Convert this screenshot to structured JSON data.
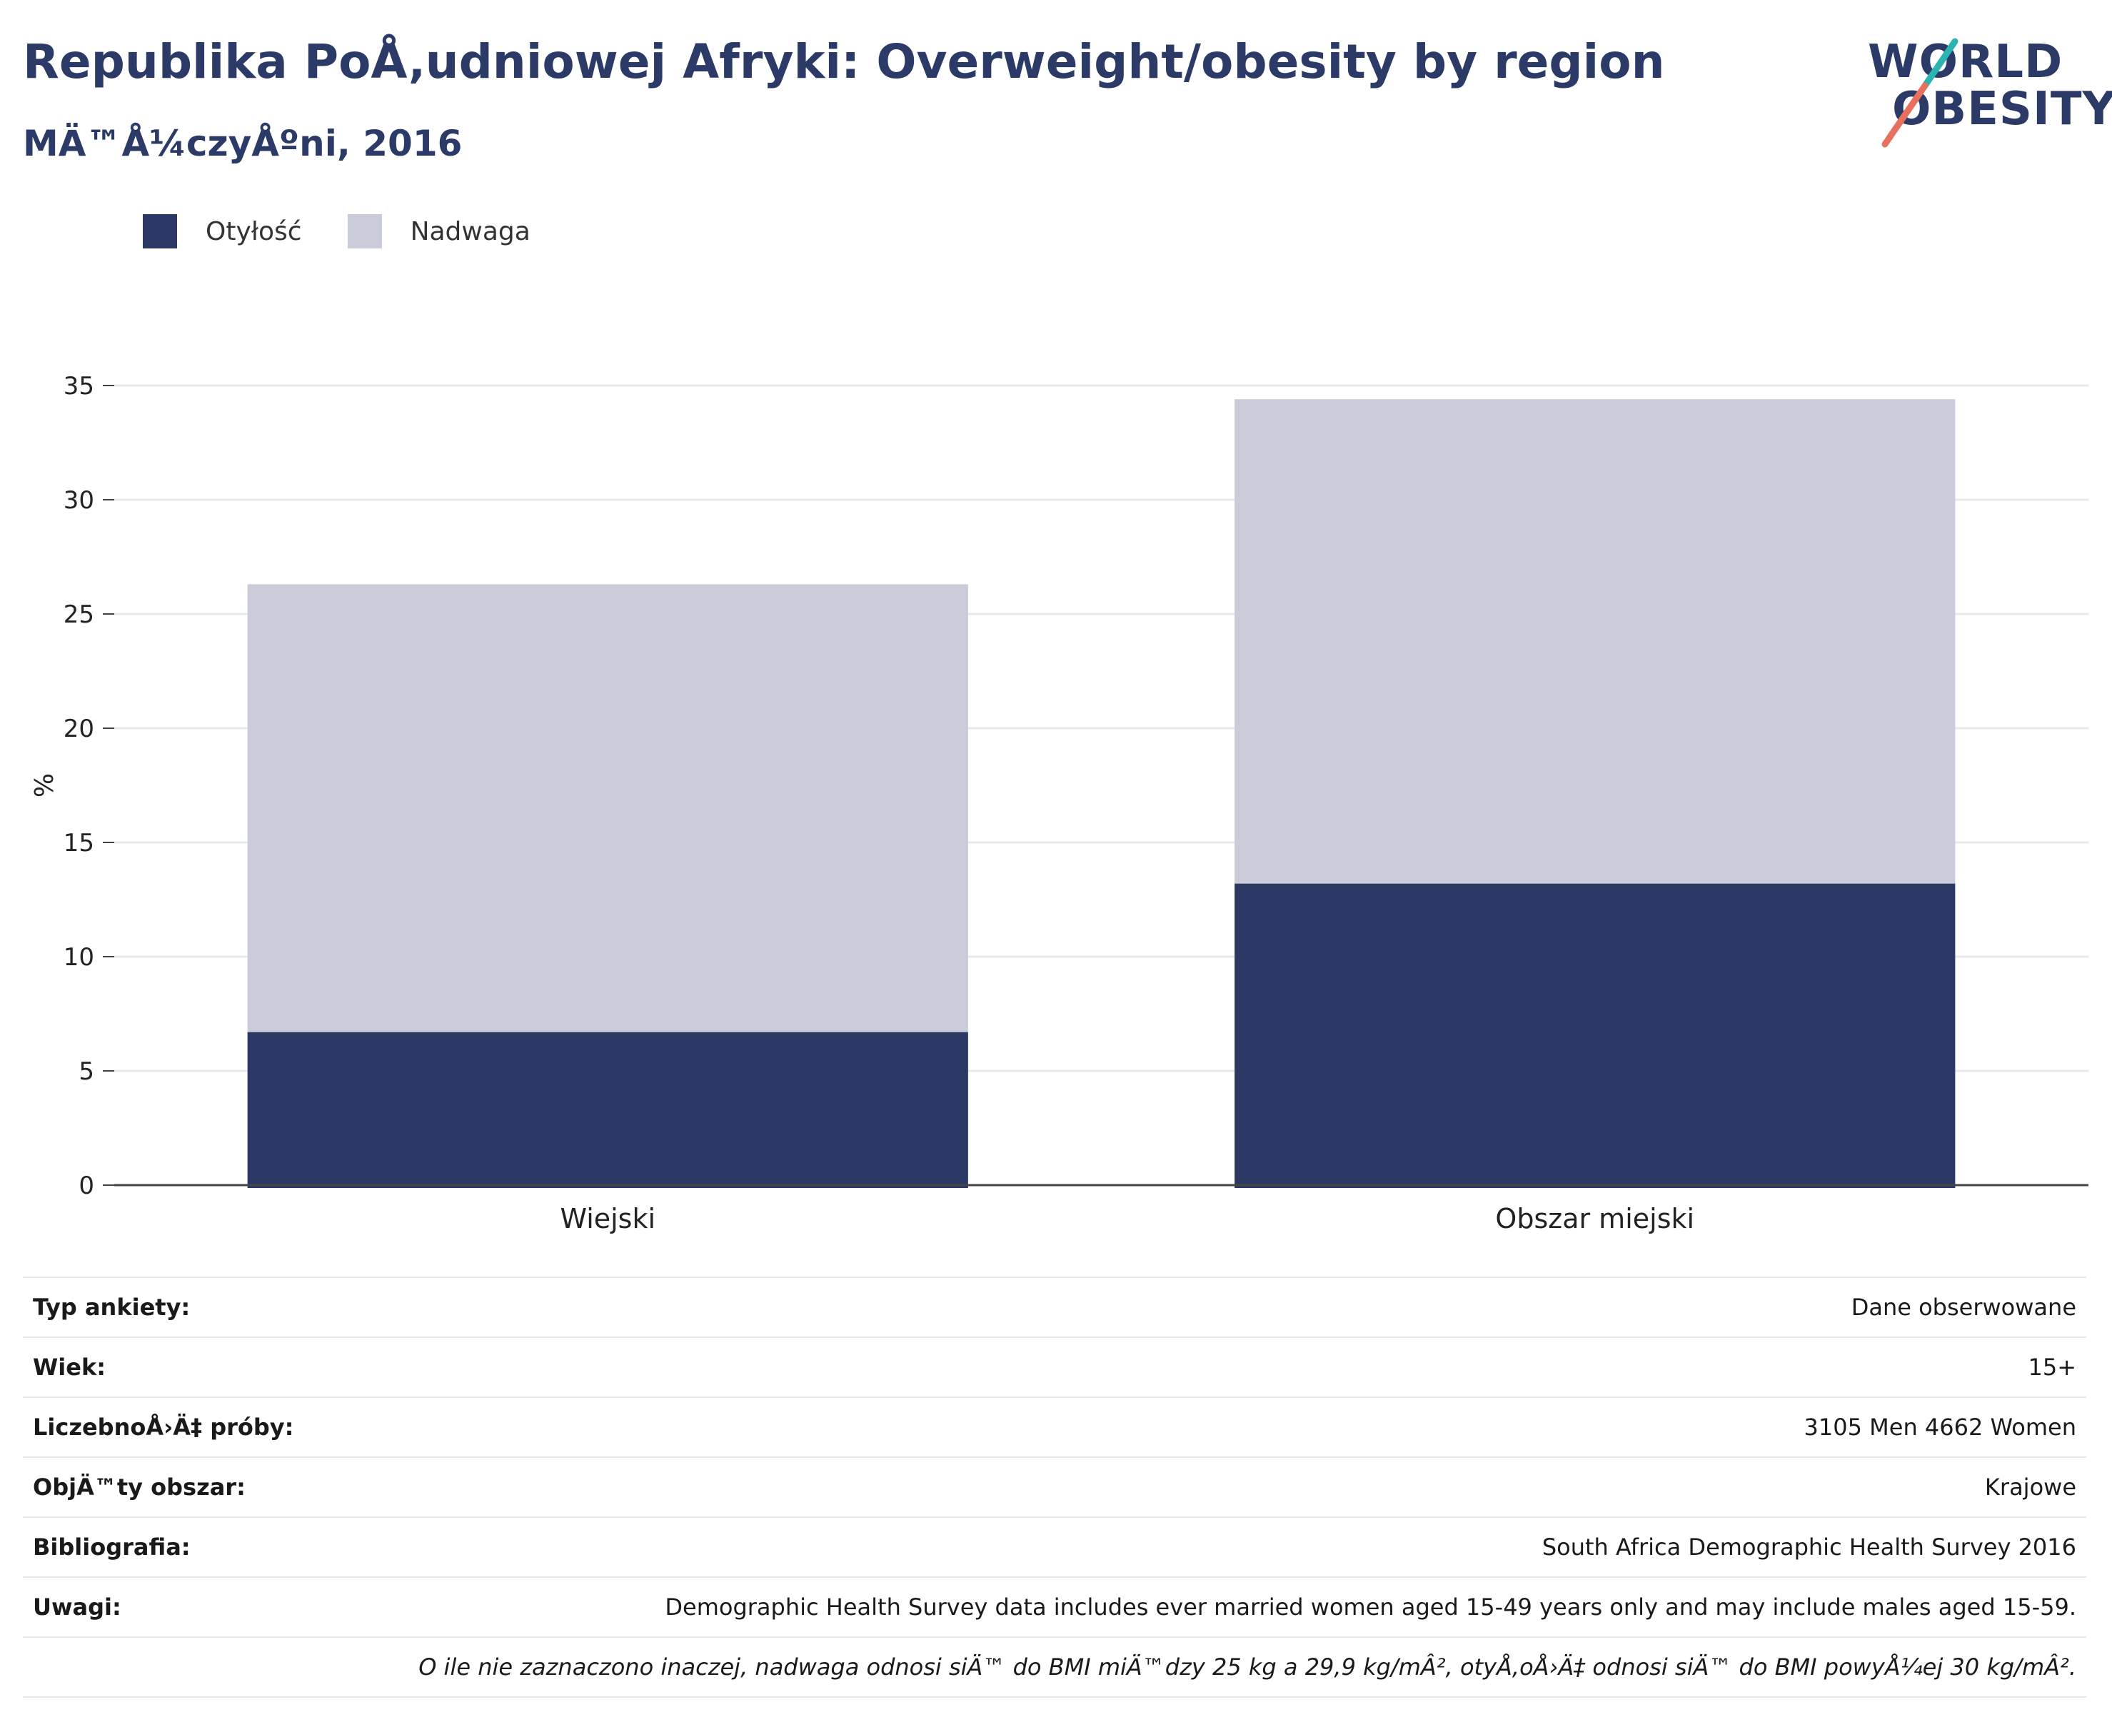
{
  "header": {
    "title": "Republika PoÅ‚udniowej Afryki: Overweight/obesity by region",
    "subtitle": "MÄ™Å¼czyÅºni, 2016"
  },
  "logo": {
    "line1": "WORLD",
    "line2": "OBESITY"
  },
  "colors": {
    "obesity": "#2b3764",
    "overweight": "#c9ccd8",
    "title": "#2b3a67",
    "logo_teal": "#2ab3b1",
    "logo_coral": "#e8705f"
  },
  "legend": [
    {
      "label": "Otyłość",
      "color": "#2b3764"
    },
    {
      "label": "Nadwaga",
      "color": "#c9ccd8"
    }
  ],
  "chart_data": {
    "type": "bar",
    "stacked": true,
    "categories": [
      "Wiejski",
      "Obszar miejski"
    ],
    "series": [
      {
        "name": "Otyłość",
        "values": [
          6.7,
          13.2
        ]
      },
      {
        "name": "Nadwaga",
        "values": [
          19.6,
          21.2
        ]
      }
    ],
    "ylabel": "%",
    "ylim": [
      0,
      35
    ],
    "yticks": [
      0,
      5,
      10,
      15,
      20,
      25,
      30,
      35
    ],
    "grid": true,
    "legend_position": "top-left"
  },
  "info": [
    {
      "key": "Typ ankiety:",
      "value": "Dane obserwowane"
    },
    {
      "key": "Wiek:",
      "value": "15+"
    },
    {
      "key": "LiczebnoÅ›Ä‡ próby:",
      "value": "3105 Men 4662 Women"
    },
    {
      "key": "ObjÄ™ty obszar:",
      "value": "Krajowe"
    },
    {
      "key": "Bibliografia:",
      "value": "South Africa Demographic Health Survey 2016"
    },
    {
      "key": "Uwagi:",
      "value": "Demographic Health Survey data includes ever married women aged 15-49 years only and may include males aged 15-59."
    }
  ],
  "footnote": "O ile nie zaznaczono inaczej, nadwaga odnosi siÄ™ do BMI miÄ™dzy 25 kg a 29,9 kg/mÂ², otyÅ‚oÅ›Ä‡ odnosi siÄ™ do BMI powyÅ¼ej 30 kg/mÂ²."
}
